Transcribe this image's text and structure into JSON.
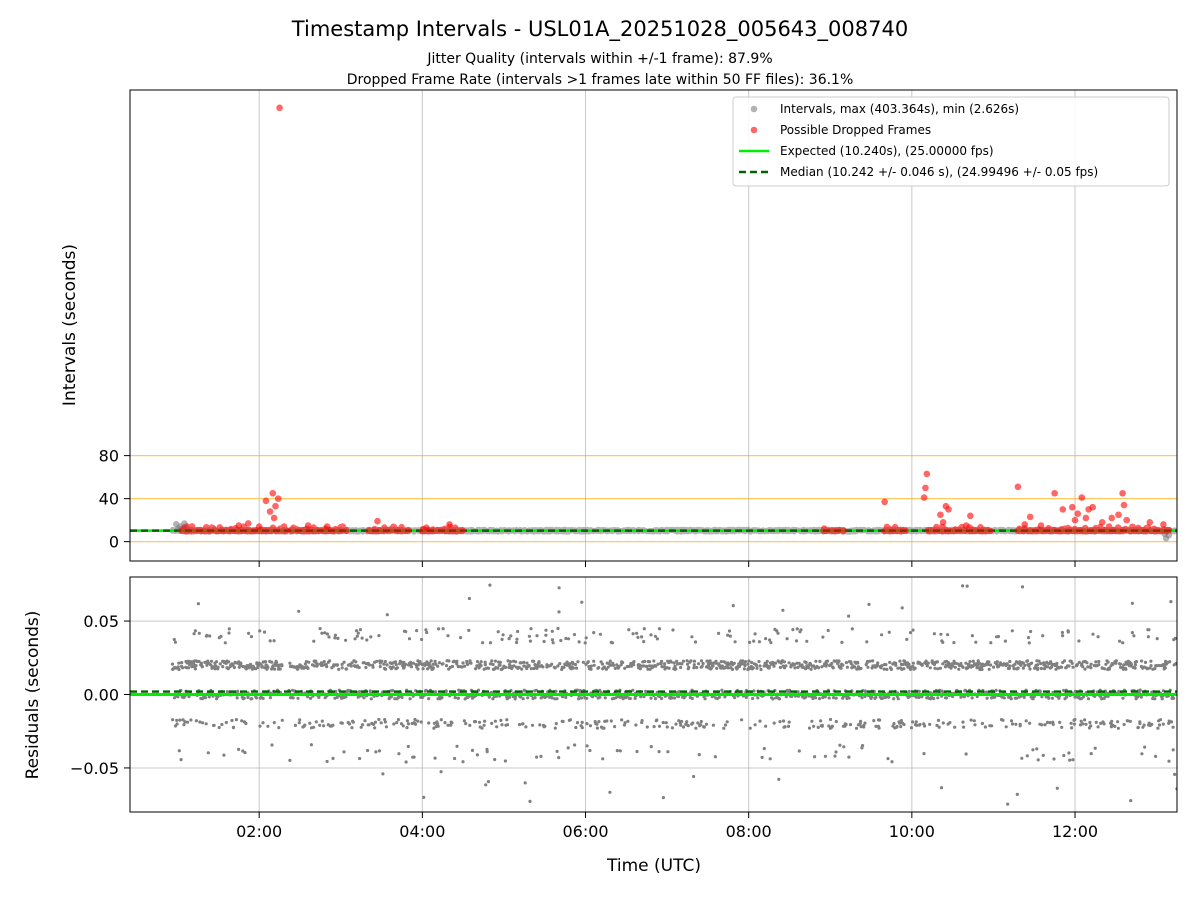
{
  "figure": {
    "title": "Timestamp Intervals - USL01A_20251028_005643_008740",
    "subtitle1": "Jitter Quality (intervals within +/-1 frame): 87.9%",
    "subtitle2": "Dropped Frame Rate (intervals >1 frames late within 50 FF files): 36.1%"
  },
  "colors": {
    "intervals": "#808080",
    "dropped": "#ff0000",
    "expected": "#00ee00",
    "median": "#006400",
    "threshold": "#ffa500",
    "grid": "#b0b0b0"
  },
  "chart_data": [
    {
      "type": "scatter",
      "panel": "intervals",
      "ylabel": "Intervals (seconds)",
      "xlabel": "",
      "xlim": [
        "00:25",
        "13:15"
      ],
      "ylim": [
        -18,
        420
      ],
      "yticks": [
        "0",
        "40",
        "80"
      ],
      "ytick_values": [
        0,
        40,
        80
      ],
      "xticks": [
        "02:00",
        "04:00",
        "06:00",
        "08:00",
        "10:00",
        "12:00"
      ],
      "grid": "vertical",
      "threshold_lines": [
        0,
        40,
        80
      ],
      "legend_position": "upper right",
      "legend": {
        "intervals": "Intervals, max (403.364s), min (2.626s)",
        "dropped": "Possible Dropped Frames",
        "expected": "Expected (10.240s), (25.00000 fps)",
        "median": "Median (10.242 +/- 0.046 s), (24.99496 +/- 0.05 fps)"
      },
      "expected_interval": 10.24,
      "median_interval": 10.242,
      "max_interval": 403.364,
      "min_interval": 2.626,
      "baseline_start": "00:56",
      "baseline_end": "13:15",
      "dropped_bands": [
        [
          "01:03",
          "02:20"
        ],
        [
          "02:23",
          "03:05"
        ],
        [
          "03:20",
          "03:50"
        ],
        [
          "04:00",
          "04:30"
        ],
        [
          "08:55",
          "09:10"
        ],
        [
          "09:40",
          "09:57"
        ],
        [
          "10:12",
          "10:58"
        ],
        [
          "11:18",
          "13:10"
        ]
      ],
      "dropped_points": [
        {
          "x": "02:15",
          "y": 403.4
        },
        {
          "x": "02:05",
          "y": 38
        },
        {
          "x": "02:08",
          "y": 28
        },
        {
          "x": "02:10",
          "y": 45
        },
        {
          "x": "02:12",
          "y": 33
        },
        {
          "x": "02:14",
          "y": 40
        },
        {
          "x": "02:11",
          "y": 22
        },
        {
          "x": "01:45",
          "y": 15
        },
        {
          "x": "01:52",
          "y": 17
        },
        {
          "x": "02:00",
          "y": 14
        },
        {
          "x": "02:36",
          "y": 15
        },
        {
          "x": "02:50",
          "y": 14
        },
        {
          "x": "03:27",
          "y": 19
        },
        {
          "x": "04:03",
          "y": 13
        },
        {
          "x": "04:20",
          "y": 16
        },
        {
          "x": "09:40",
          "y": 37
        },
        {
          "x": "10:11",
          "y": 63
        },
        {
          "x": "10:10",
          "y": 50
        },
        {
          "x": "10:09",
          "y": 41
        },
        {
          "x": "10:21",
          "y": 25
        },
        {
          "x": "10:25",
          "y": 33
        },
        {
          "x": "10:27",
          "y": 30
        },
        {
          "x": "10:23",
          "y": 18
        },
        {
          "x": "10:40",
          "y": 15
        },
        {
          "x": "10:43",
          "y": 24
        },
        {
          "x": "11:18",
          "y": 51
        },
        {
          "x": "11:27",
          "y": 23
        },
        {
          "x": "11:23",
          "y": 16
        },
        {
          "x": "11:45",
          "y": 45
        },
        {
          "x": "11:51",
          "y": 30
        },
        {
          "x": "11:58",
          "y": 32
        },
        {
          "x": "12:02",
          "y": 26
        },
        {
          "x": "12:05",
          "y": 41
        },
        {
          "x": "12:08",
          "y": 22
        },
        {
          "x": "12:10",
          "y": 30
        },
        {
          "x": "12:13",
          "y": 32
        },
        {
          "x": "12:00",
          "y": 20
        },
        {
          "x": "12:27",
          "y": 22
        },
        {
          "x": "12:32",
          "y": 25
        },
        {
          "x": "12:35",
          "y": 45
        },
        {
          "x": "12:36",
          "y": 34
        },
        {
          "x": "12:38",
          "y": 20
        },
        {
          "x": "12:55",
          "y": 18
        },
        {
          "x": "13:05",
          "y": 16
        },
        {
          "x": "12:20",
          "y": 18
        },
        {
          "x": "11:35",
          "y": 15
        }
      ],
      "low_points": [
        {
          "x": "13:06",
          "y": 7
        },
        {
          "x": "13:07",
          "y": 3
        },
        {
          "x": "13:09",
          "y": 6
        }
      ]
    },
    {
      "type": "scatter",
      "panel": "residuals",
      "ylabel": "Residuals (seconds)",
      "xlabel": "Time (UTC)",
      "xlim": [
        "00:25",
        "13:15"
      ],
      "ylim": [
        -0.08,
        0.08
      ],
      "yticks": [
        "0.05",
        "0.00",
        "−0.05"
      ],
      "ytick_values": [
        0.05,
        0.0,
        -0.05
      ],
      "xticks": [
        "02:00",
        "04:00",
        "06:00",
        "08:00",
        "10:00",
        "12:00"
      ],
      "grid": "both",
      "expected_residual": 0.0,
      "median_residual": 0.002,
      "residual_bands": [
        0.02,
        0.0,
        -0.02,
        0.04,
        -0.04
      ],
      "residual_start": "00:56",
      "residual_end": "13:15"
    }
  ]
}
